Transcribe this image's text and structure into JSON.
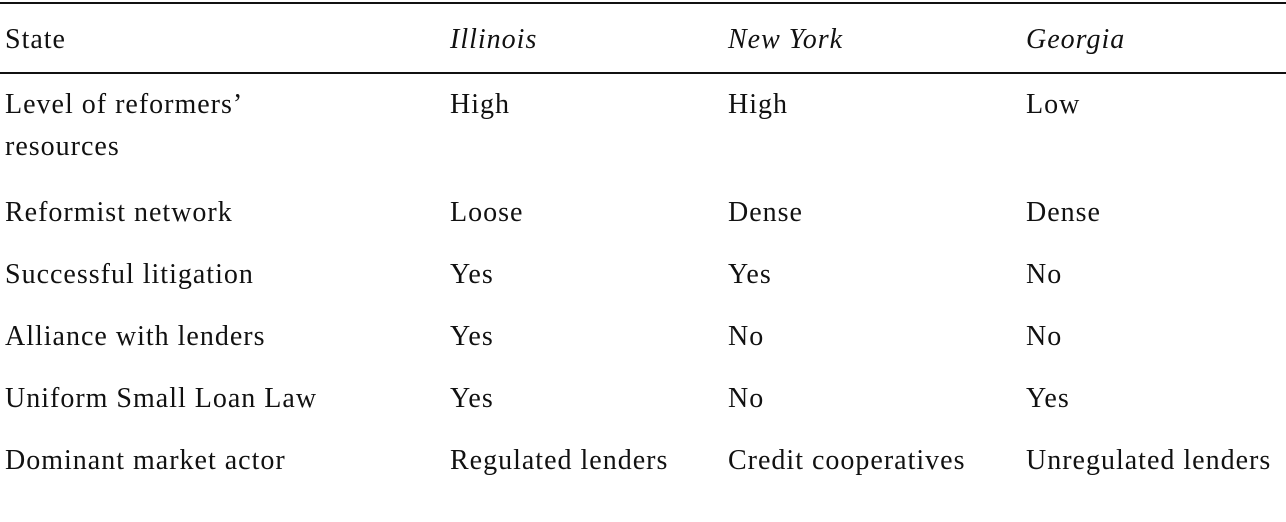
{
  "table": {
    "header": [
      "State",
      "Illinois",
      "New York",
      "Georgia"
    ],
    "rows": [
      [
        "Level of reformers’ resources",
        "High",
        "High",
        "Low"
      ],
      [
        "Reformist network",
        "Loose",
        "Dense",
        "Dense"
      ],
      [
        "Successful litigation",
        "Yes",
        "Yes",
        "No"
      ],
      [
        "Alliance with lenders",
        "Yes",
        "No",
        "No"
      ],
      [
        "Uniform Small Loan Law",
        "Yes",
        "No",
        "Yes"
      ],
      [
        "Dominant market actor",
        "Regulated lenders",
        "Credit cooperatives",
        "Unregulated lenders"
      ]
    ]
  }
}
